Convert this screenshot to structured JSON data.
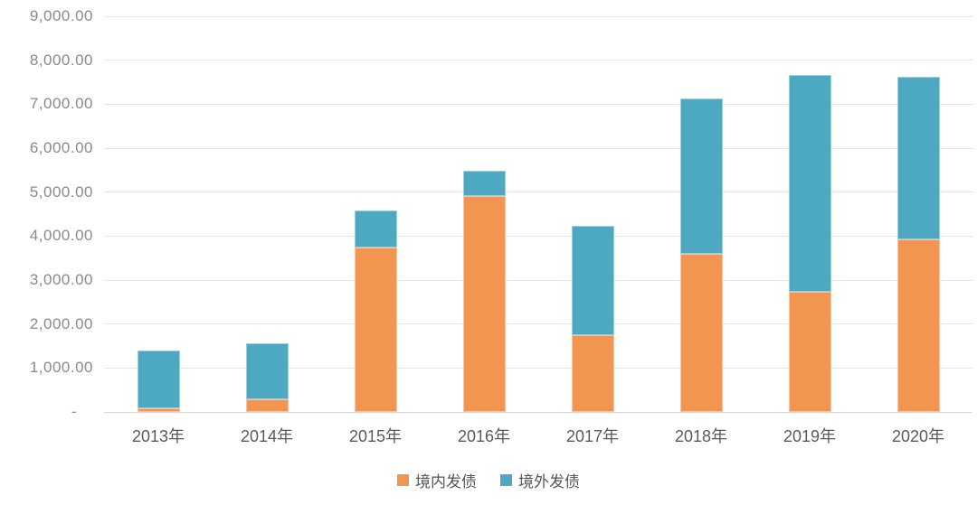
{
  "chart_data": {
    "type": "bar",
    "stacked": true,
    "title": "",
    "xlabel": "",
    "ylabel": "",
    "categories": [
      "2013年",
      "2014年",
      "2015年",
      "2016年",
      "2017年",
      "2018年",
      "2019年",
      "2020年"
    ],
    "series": [
      {
        "name": "境内发债",
        "color": "#F29550",
        "values": [
          80,
          290,
          3730,
          4920,
          1740,
          3590,
          2740,
          3930
        ]
      },
      {
        "name": "境外发债",
        "color": "#4DA9C1",
        "values": [
          1320,
          1280,
          860,
          570,
          2490,
          3540,
          4930,
          3700
        ]
      }
    ],
    "totals": [
      1400,
      1570,
      4590,
      5490,
      4230,
      7130,
      7670,
      7630
    ],
    "ylim": [
      0,
      9000
    ],
    "ytick_step": 1000,
    "ytick_labels": [
      "-",
      "1,000.00",
      "2,000.00",
      "3,000.00",
      "4,000.00",
      "5,000.00",
      "6,000.00",
      "7,000.00",
      "8,000.00",
      "9,000.00"
    ],
    "grid": true,
    "legend_position": "bottom"
  },
  "colors": {
    "background": "#ffffff",
    "gridline": "#e5e5e5",
    "baseline": "#d6d6d6",
    "y_tick_text": "#8a8a8a",
    "x_tick_text": "#5a5a5a",
    "legend_text": "#565656"
  }
}
